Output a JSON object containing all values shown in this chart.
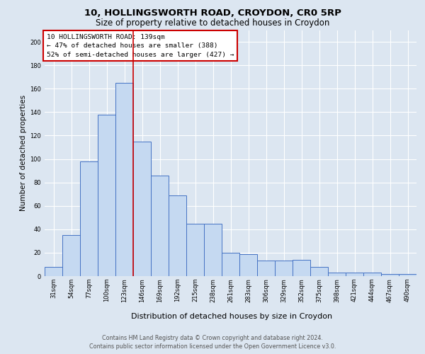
{
  "title1": "10, HOLLINGSWORTH ROAD, CROYDON, CR0 5RP",
  "title2": "Size of property relative to detached houses in Croydon",
  "xlabel": "Distribution of detached houses by size in Croydon",
  "ylabel": "Number of detached properties",
  "footer1": "Contains HM Land Registry data © Crown copyright and database right 2024.",
  "footer2": "Contains public sector information licensed under the Open Government Licence v3.0.",
  "annotation_line1": "10 HOLLINGSWORTH ROAD: 139sqm",
  "annotation_line2": "← 47% of detached houses are smaller (388)",
  "annotation_line3": "52% of semi-detached houses are larger (427) →",
  "bar_labels": [
    "31sqm",
    "54sqm",
    "77sqm",
    "100sqm",
    "123sqm",
    "146sqm",
    "169sqm",
    "192sqm",
    "215sqm",
    "238sqm",
    "261sqm",
    "283sqm",
    "306sqm",
    "329sqm",
    "352sqm",
    "375sqm",
    "398sqm",
    "421sqm",
    "444sqm",
    "467sqm",
    "490sqm"
  ],
  "bar_values": [
    8,
    35,
    98,
    138,
    165,
    115,
    86,
    69,
    45,
    45,
    20,
    19,
    13,
    13,
    14,
    8,
    3,
    3,
    3,
    2,
    2
  ],
  "bar_edge_color": "#4472c4",
  "bar_face_color": "#c5d9f1",
  "vline_color": "#cc0000",
  "vline_position": 4.5,
  "bg_color": "#dce6f1",
  "plot_bg_color": "#dce6f1",
  "grid_color": "#ffffff",
  "annotation_box_edge": "#cc0000",
  "ylim": [
    0,
    210
  ],
  "yticks": [
    0,
    20,
    40,
    60,
    80,
    100,
    120,
    140,
    160,
    180,
    200
  ],
  "title1_fontsize": 9.5,
  "title2_fontsize": 8.5,
  "ylabel_fontsize": 7.5,
  "xlabel_fontsize": 8,
  "tick_fontsize": 6,
  "annot_fontsize": 6.8,
  "footer_fontsize": 5.8
}
